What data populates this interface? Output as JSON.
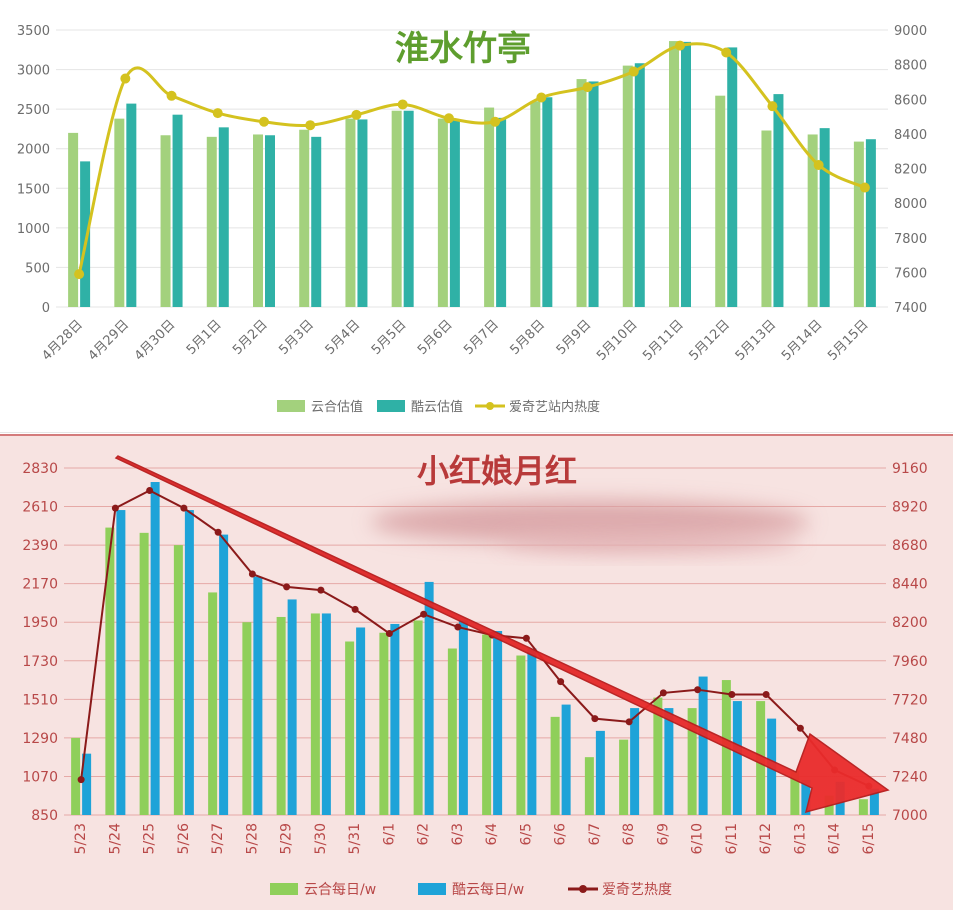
{
  "chart_data": [
    {
      "type": "bar",
      "title": "淮水竹亭",
      "categories": [
        "4月28日",
        "4月29日",
        "4月30日",
        "5月1日",
        "5月2日",
        "5月3日",
        "5月4日",
        "5月5日",
        "5月6日",
        "5月7日",
        "5月8日",
        "5月9日",
        "5月10日",
        "5月11日",
        "5月12日",
        "5月13日",
        "5月14日",
        "5月15日"
      ],
      "y_ticks": [
        "0",
        "500",
        "1000",
        "1500",
        "2000",
        "2500",
        "3000",
        "3500"
      ],
      "y2_ticks": [
        "7400",
        "7600",
        "7800",
        "8000",
        "8200",
        "8400",
        "8600",
        "8800",
        "9000"
      ],
      "ylim": [
        0,
        3500
      ],
      "y2lim": [
        7400,
        9000
      ],
      "legend_position": "bottom",
      "grid": true,
      "series": [
        {
          "name": "云合估值",
          "type": "bar",
          "axis": "left",
          "color": "#a3d17d",
          "values": [
            2200,
            2380,
            2170,
            2150,
            2180,
            2240,
            2380,
            2480,
            2380,
            2520,
            2600,
            2880,
            3050,
            3360,
            2670,
            2230,
            2180,
            2090
          ]
        },
        {
          "name": "酷云估值",
          "type": "bar",
          "axis": "left",
          "color": "#2fb1a6",
          "values": [
            1840,
            2570,
            2430,
            2270,
            2170,
            2150,
            2370,
            2480,
            2360,
            2390,
            2650,
            2850,
            3080,
            3350,
            3280,
            2690,
            2260,
            2120
          ]
        },
        {
          "name": "爱奇艺站内热度",
          "type": "line",
          "axis": "right",
          "color": "#d4c21f",
          "values": [
            7590,
            8720,
            8620,
            8520,
            8470,
            8450,
            8510,
            8570,
            8490,
            8470,
            8610,
            8670,
            8760,
            8910,
            8870,
            8560,
            8220,
            8090
          ]
        }
      ]
    },
    {
      "type": "bar",
      "title": "小红娘月红",
      "categories": [
        "5/23",
        "5/24",
        "5/25",
        "5/26",
        "5/27",
        "5/28",
        "5/29",
        "5/30",
        "5/31",
        "6/1",
        "6/2",
        "6/3",
        "6/4",
        "6/5",
        "6/6",
        "6/7",
        "6/8",
        "6/9",
        "6/10",
        "6/11",
        "6/12",
        "6/13",
        "6/14",
        "6/15"
      ],
      "y_ticks": [
        "850",
        "1070",
        "1290",
        "1510",
        "1730",
        "1950",
        "2170",
        "2390",
        "2610",
        "2830"
      ],
      "y2_ticks": [
        "7000",
        "7240",
        "7480",
        "7720",
        "7960",
        "8200",
        "8440",
        "8680",
        "8920",
        "9160"
      ],
      "ylim": [
        850,
        2830
      ],
      "y2lim": [
        7000,
        9160
      ],
      "legend_position": "bottom",
      "grid": true,
      "series": [
        {
          "name": "云合每日/w",
          "type": "bar",
          "axis": "left",
          "color": "#8fcf5a",
          "values": [
            1290,
            2490,
            2460,
            2390,
            2120,
            1950,
            1980,
            2000,
            1840,
            1890,
            1960,
            1800,
            1880,
            1760,
            1410,
            1180,
            1280,
            1520,
            1460,
            1620,
            1500,
            1100,
            960,
            940
          ]
        },
        {
          "name": "酷云每日/w",
          "type": "bar",
          "axis": "left",
          "color": "#1ea3d8",
          "values": [
            1200,
            2590,
            2750,
            2590,
            2450,
            2210,
            2080,
            2000,
            1920,
            1940,
            2180,
            1960,
            1900,
            1800,
            1480,
            1330,
            1460,
            1460,
            1640,
            1500,
            1400,
            1050,
            1040,
            1000
          ]
        },
        {
          "name": "爱奇艺热度",
          "type": "line",
          "axis": "right",
          "color": "#8b1a1a",
          "values": [
            7220,
            8910,
            9020,
            8910,
            8760,
            8500,
            8420,
            8400,
            8280,
            8130,
            8250,
            8170,
            8120,
            8100,
            7830,
            7600,
            7580,
            7760,
            7780,
            7750,
            7750,
            7540,
            7280,
            7180
          ]
        }
      ]
    }
  ]
}
